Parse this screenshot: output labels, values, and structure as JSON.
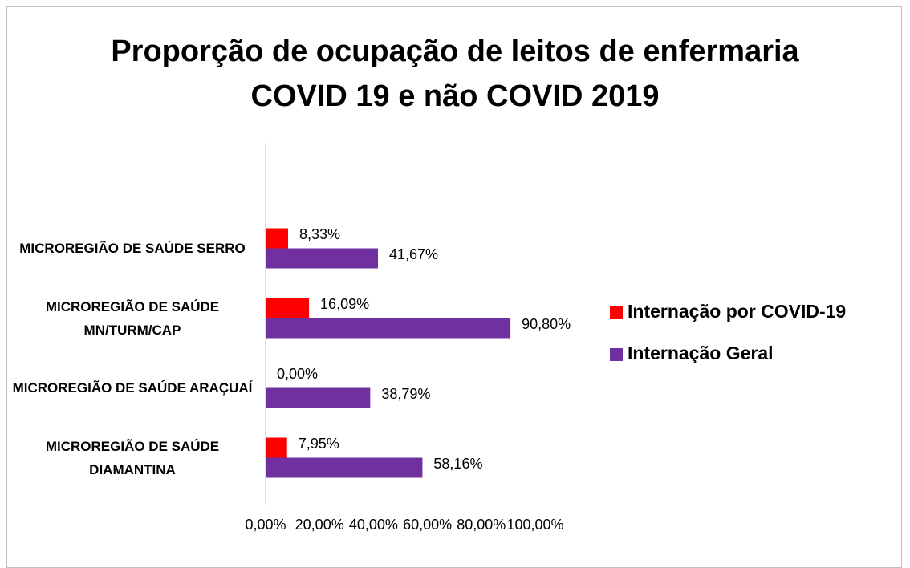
{
  "chart_data": {
    "type": "bar",
    "orientation": "horizontal",
    "title": "Proporção de ocupação de leitos de enfermaria COVID 19 e não COVID 2019",
    "categories": [
      "MICROREGIÃO DE SAÚDE SERRO",
      "MICROREGIÃO DE SAÚDE MN/TURM/CAP",
      "MICROREGIÃO DE SAÚDE ARAÇUAÍ",
      "MICROREGIÃO DE SAÚDE DIAMANTINA"
    ],
    "series": [
      {
        "name": "Internação por COVID-19",
        "color": "#ff0000",
        "values": [
          8.33,
          16.09,
          0,
          7.95
        ],
        "value_labels": [
          "8,33%",
          "16,09%",
          "0,00%",
          "7,95%"
        ],
        "label_colors": [
          "#000000",
          "#000000",
          "#000000",
          "#000000"
        ]
      },
      {
        "name": "Internação Geral",
        "color": "#7030a0",
        "values": [
          41.67,
          90.8,
          38.79,
          58.16
        ],
        "value_labels": [
          "41,67%",
          "90,80%",
          "38,79%",
          "58,16%"
        ],
        "label_colors": [
          "#000000",
          "#ff0000",
          "#000000",
          "#000000"
        ]
      }
    ],
    "xlim": [
      0,
      100
    ],
    "xticks": [
      {
        "value": 0,
        "label": "0,00%"
      },
      {
        "value": 20,
        "label": "20,00%"
      },
      {
        "value": 40,
        "label": "40,00%"
      },
      {
        "value": 60,
        "label": "60,00%"
      },
      {
        "value": 80,
        "label": "80,00%"
      },
      {
        "value": 100,
        "label": "100,00%"
      }
    ],
    "legend": "right",
    "grid": false
  }
}
